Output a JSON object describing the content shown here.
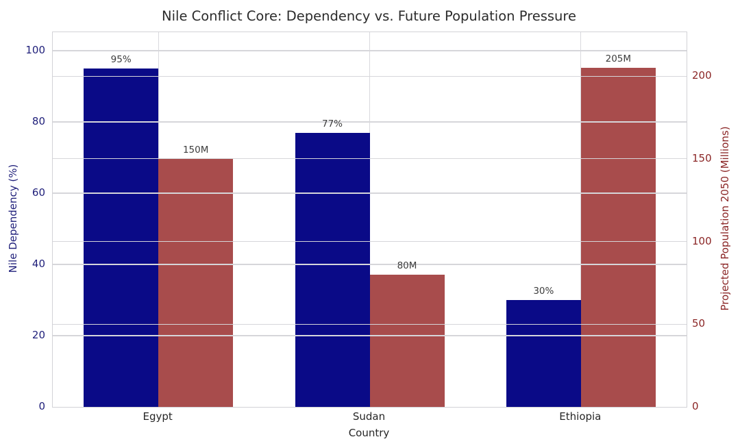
{
  "chart_data": {
    "type": "bar",
    "title": "Nile Conflict Core: Dependency vs. Future Population Pressure",
    "xlabel": "Country",
    "categories": [
      "Egypt",
      "Sudan",
      "Ethiopia"
    ],
    "series": [
      {
        "name": "Nile Dependency (%)",
        "axis": "left",
        "color": "#0a0a87",
        "values": [
          95,
          77,
          30
        ],
        "labels": [
          "95%",
          "77%",
          "30%"
        ]
      },
      {
        "name": "Projected Population 2050 (Millions)",
        "axis": "right",
        "color": "#a84c4c",
        "values": [
          150,
          80,
          205
        ],
        "labels": [
          "150M",
          "80M",
          "205M"
        ]
      }
    ],
    "left_axis": {
      "label": "Nile Dependency (%)",
      "ticks": [
        0,
        20,
        40,
        60,
        80,
        100
      ],
      "ylim": [
        0,
        105
      ],
      "text_color": "#1f1f7a"
    },
    "right_axis": {
      "label": "Projected Population 2050 (Millions)",
      "ticks": [
        0,
        50,
        100,
        150,
        200
      ],
      "ylim": [
        0,
        227
      ],
      "text_color": "#8b2626"
    },
    "grid": "on",
    "legend": "none",
    "annotation_color": "#3c3c3c"
  }
}
